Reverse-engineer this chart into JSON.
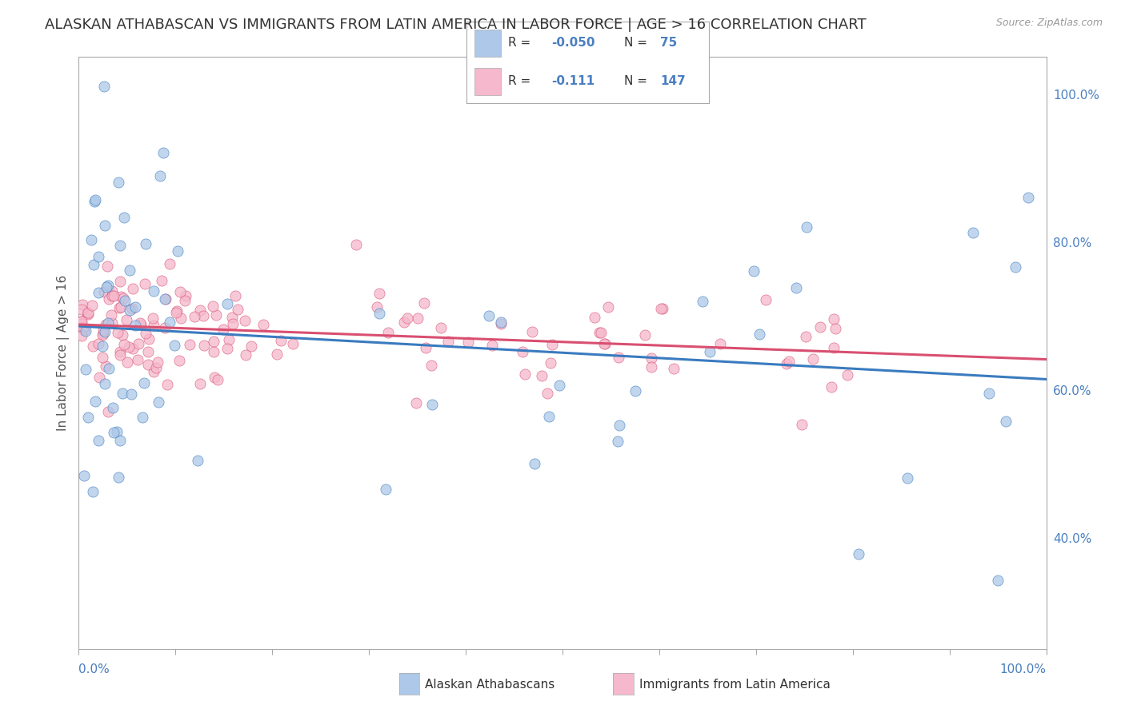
{
  "title": "ALASKAN ATHABASCAN VS IMMIGRANTS FROM LATIN AMERICA IN LABOR FORCE | AGE > 16 CORRELATION CHART",
  "source": "Source: ZipAtlas.com",
  "ylabel": "In Labor Force | Age > 16",
  "R_blue": -0.05,
  "N_blue": 75,
  "R_pink": -0.111,
  "N_pink": 147,
  "legend_label_blue": "Alaskan Athabascans",
  "legend_label_pink": "Immigrants from Latin America",
  "blue_color": "#adc8e8",
  "pink_color": "#f5b8cc",
  "blue_line_color": "#3a7bbf",
  "pink_line_color": "#d94f70",
  "xlim": [
    0.0,
    1.0
  ],
  "ylim": [
    0.25,
    1.05
  ],
  "yticks": [
    0.4,
    0.6,
    0.8,
    1.0
  ],
  "ytick_labels": [
    "40.0%",
    "60.0%",
    "80.0%",
    "100.0%"
  ],
  "grid_color": "#cccccc",
  "background_color": "#ffffff",
  "title_fontsize": 13,
  "source_fontsize": 9,
  "tick_fontsize": 11,
  "ylabel_fontsize": 11
}
